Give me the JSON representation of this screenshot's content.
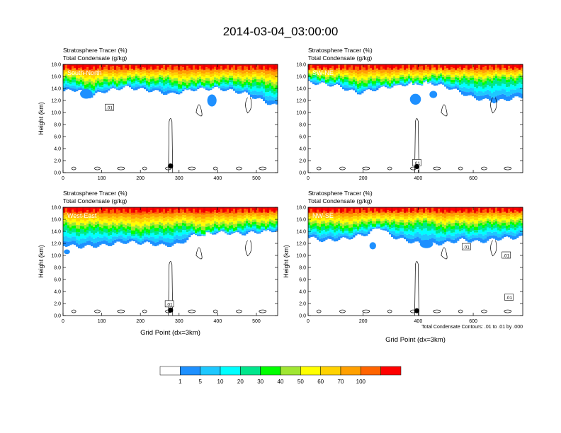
{
  "title": "2014-03-04_03:00:00",
  "colorbar": {
    "colors": [
      "#ffffff",
      "#1e90ff",
      "#1ec8ff",
      "#00ffff",
      "#00e68c",
      "#00ff00",
      "#a0e632",
      "#ffff00",
      "#ffd200",
      "#ffa000",
      "#ff6400",
      "#ff0000"
    ],
    "labels": [
      "1",
      "5",
      "10",
      "20",
      "30",
      "40",
      "50",
      "60",
      "70",
      "100"
    ]
  },
  "contour_note": "Total Condensate Contours: .01 to .01 by .000",
  "chart_data": [
    {
      "type": "heatmap",
      "title_lines": [
        "Stratosphere Tracer   (%)",
        "Total Condensate   (g/kg)"
      ],
      "panel_label": "South-North",
      "ylabel": "Height (km)",
      "xlabel": "",
      "xlim": [
        0,
        555
      ],
      "ylim": [
        0,
        18
      ],
      "xticks": [
        "0",
        "100",
        "200",
        "300",
        "400",
        "500"
      ],
      "xtick_values": [
        0,
        100,
        200,
        300,
        400,
        500
      ],
      "yticks": [
        "0.0",
        "2.0",
        "4.0",
        "6.0",
        "8.0",
        "10.0",
        "12.0",
        "14.0",
        "16.0",
        "18.0"
      ],
      "ytick_values": [
        0,
        2,
        4,
        6,
        8,
        10,
        12,
        14,
        16,
        18
      ],
      "contour_labels": [
        ".01"
      ],
      "contour_label_pos": [
        [
          120,
          10.8
        ]
      ],
      "marker": [
        278,
        1.1
      ],
      "tracer_base": [
        [
          0,
          15.3
        ],
        [
          40,
          14.9
        ],
        [
          80,
          14.2
        ],
        [
          110,
          14.7
        ],
        [
          150,
          15.0
        ],
        [
          200,
          15.2
        ],
        [
          260,
          15.1
        ],
        [
          320,
          14.4
        ],
        [
          380,
          14.8
        ],
        [
          440,
          15.0
        ],
        [
          500,
          14.6
        ],
        [
          555,
          14.0
        ]
      ],
      "cloud_base": [
        [
          0,
          13.5
        ],
        [
          40,
          13.8
        ],
        [
          70,
          12.6
        ],
        [
          100,
          13.4
        ],
        [
          160,
          14.2
        ],
        [
          230,
          13.6
        ],
        [
          280,
          13.0
        ],
        [
          330,
          13.8
        ],
        [
          400,
          14.0
        ],
        [
          470,
          13.2
        ],
        [
          520,
          11.8
        ],
        [
          555,
          11.0
        ]
      ],
      "blobs": [
        [
          60,
          13.1,
          8,
          0.8
        ],
        [
          385,
          12.0,
          6,
          1.0
        ]
      ]
    },
    {
      "type": "heatmap",
      "title_lines": [
        "Stratosphere Tracer   (%)",
        "Total Condensate   (g/kg)"
      ],
      "panel_label": "SW-NE",
      "ylabel": "",
      "xlabel": "",
      "xlim": [
        0,
        780
      ],
      "ylim": [
        0,
        18
      ],
      "xticks": [
        "0",
        "200",
        "400",
        "600"
      ],
      "xtick_values": [
        0,
        200,
        400,
        600
      ],
      "yticks": [
        "0.0",
        "2.0",
        "4.0",
        "6.0",
        "8.0",
        "10.0",
        "12.0",
        "14.0",
        "16.0",
        "18.0"
      ],
      "ytick_values": [
        0,
        2,
        4,
        6,
        8,
        10,
        12,
        14,
        16,
        18
      ],
      "contour_labels": [
        ".01"
      ],
      "contour_label_pos": [
        [
          395,
          1.6
        ]
      ],
      "marker": [
        395,
        1.0
      ],
      "tracer_base": [
        [
          0,
          15.8
        ],
        [
          100,
          15.4
        ],
        [
          200,
          14.6
        ],
        [
          300,
          15.0
        ],
        [
          400,
          15.3
        ],
        [
          500,
          15.6
        ],
        [
          600,
          15.0
        ],
        [
          700,
          15.2
        ],
        [
          780,
          15.6
        ]
      ],
      "cloud_base": [
        [
          0,
          15.0
        ],
        [
          100,
          14.5
        ],
        [
          180,
          13.2
        ],
        [
          260,
          14.0
        ],
        [
          340,
          14.6
        ],
        [
          440,
          15.0
        ],
        [
          520,
          14.0
        ],
        [
          600,
          12.4
        ],
        [
          680,
          11.8
        ],
        [
          780,
          12.6
        ]
      ],
      "blobs": [
        [
          390,
          12.2,
          10,
          0.9
        ],
        [
          455,
          13.0,
          7,
          0.6
        ]
      ]
    },
    {
      "type": "heatmap",
      "title_lines": [
        "Stratosphere Tracer   (%)",
        "Total Condensate   (g/kg)"
      ],
      "panel_label": "West-East",
      "ylabel": "Height (km)",
      "xlabel": "Grid Point (dx=3km)",
      "xlim": [
        0,
        555
      ],
      "ylim": [
        0,
        18
      ],
      "xticks": [
        "0",
        "100",
        "200",
        "300",
        "400",
        "500"
      ],
      "xtick_values": [
        0,
        100,
        200,
        300,
        400,
        500
      ],
      "yticks": [
        "0.0",
        "2.0",
        "4.0",
        "6.0",
        "8.0",
        "10.0",
        "12.0",
        "14.0",
        "16.0",
        "18.0"
      ],
      "ytick_values": [
        0,
        2,
        4,
        6,
        8,
        10,
        12,
        14,
        16,
        18
      ],
      "contour_labels": [
        ".01"
      ],
      "contour_label_pos": [
        [
          275,
          1.9
        ]
      ],
      "marker": [
        278,
        0.9
      ],
      "tracer_base": [
        [
          0,
          14.6
        ],
        [
          60,
          14.2
        ],
        [
          120,
          14.4
        ],
        [
          180,
          13.8
        ],
        [
          240,
          14.0
        ],
        [
          300,
          14.6
        ],
        [
          360,
          14.0
        ],
        [
          420,
          14.4
        ],
        [
          480,
          14.8
        ],
        [
          555,
          15.0
        ]
      ],
      "cloud_base": [
        [
          0,
          11.8
        ],
        [
          40,
          11.4
        ],
        [
          100,
          11.6
        ],
        [
          160,
          12.2
        ],
        [
          220,
          12.0
        ],
        [
          260,
          11.6
        ],
        [
          300,
          11.8
        ],
        [
          340,
          13.4
        ],
        [
          400,
          13.8
        ],
        [
          470,
          13.6
        ],
        [
          520,
          14.0
        ],
        [
          555,
          14.2
        ]
      ],
      "blobs": [
        [
          10,
          10.6,
          4,
          0.4
        ]
      ]
    },
    {
      "type": "heatmap",
      "title_lines": [
        "Stratosphere Tracer   (%)",
        "Total Condensate   (g/kg)"
      ],
      "panel_label": "NW-SE",
      "ylabel": "Height (km)",
      "xlabel": "Grid Point (dx=3km)",
      "xlim": [
        0,
        780
      ],
      "ylim": [
        0,
        18
      ],
      "xticks": [
        "0",
        "200",
        "400",
        "600"
      ],
      "xtick_values": [
        0,
        200,
        400,
        600
      ],
      "yticks": [
        "0.0",
        "2.0",
        "4.0",
        "6.0",
        "8.0",
        "10.0",
        "12.0",
        "14.0",
        "16.0",
        "18.0"
      ],
      "ytick_values": [
        0,
        2,
        4,
        6,
        8,
        10,
        12,
        14,
        16,
        18
      ],
      "contour_labels": [
        ".01",
        ".01",
        ".01"
      ],
      "contour_label_pos": [
        [
          575,
          11.4
        ],
        [
          720,
          10.0
        ],
        [
          730,
          3.0
        ]
      ],
      "marker": [
        395,
        0.8
      ],
      "tracer_base": [
        [
          0,
          15.0
        ],
        [
          100,
          14.4
        ],
        [
          200,
          14.6
        ],
        [
          260,
          15.4
        ],
        [
          320,
          14.6
        ],
        [
          400,
          15.2
        ],
        [
          500,
          14.4
        ],
        [
          600,
          14.6
        ],
        [
          700,
          15.0
        ],
        [
          780,
          14.8
        ]
      ],
      "cloud_base": [
        [
          0,
          13.0
        ],
        [
          60,
          12.4
        ],
        [
          140,
          12.8
        ],
        [
          220,
          13.6
        ],
        [
          260,
          14.8
        ],
        [
          300,
          13.2
        ],
        [
          360,
          12.4
        ],
        [
          420,
          11.8
        ],
        [
          500,
          12.0
        ],
        [
          560,
          12.6
        ],
        [
          620,
          12.2
        ],
        [
          700,
          12.8
        ],
        [
          780,
          13.0
        ]
      ],
      "blobs": [
        [
          235,
          11.6,
          6,
          0.6
        ],
        [
          430,
          11.9,
          12,
          0.7
        ]
      ]
    }
  ]
}
